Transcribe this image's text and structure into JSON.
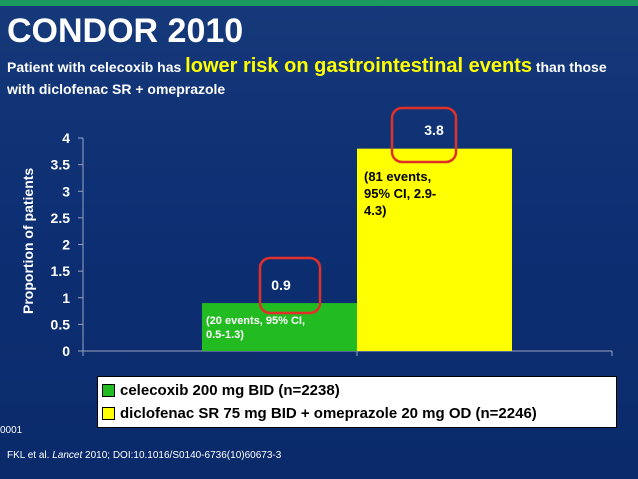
{
  "header": {
    "title": "CONDOR 2010",
    "subtitle_pre": "Patient with celecoxib has ",
    "subtitle_highlight": "lower risk on gastrointestinal events",
    "subtitle_post": " than those with diclofenac SR + omeprazole"
  },
  "colors": {
    "background": "#0d2f73",
    "celecoxib": "#22bb22",
    "diclofenac": "#ffff00",
    "highlight": "#ffff00",
    "callout": "#e0302a"
  },
  "chart_data": {
    "type": "bar",
    "title": "",
    "xlabel": "",
    "ylabel": "Proportion of patients",
    "ylim": [
      0,
      4
    ],
    "yticks": [
      0,
      0.5,
      1,
      1.5,
      2,
      2.5,
      3,
      3.5,
      4
    ],
    "grid": false,
    "legend_position": "bottom",
    "series": [
      {
        "name": "celecoxib 200 mg BID (n=2238)",
        "value": 0.9,
        "value_label": "0.9",
        "annotation": [
          "(20 events, 95% CI,",
          "0.5-1.3)"
        ]
      },
      {
        "name": "diclofenac SR 75 mg BID + omeprazole 20 mg OD (n=2246)",
        "value": 3.8,
        "value_label": "3.8",
        "annotation": [
          "(81 events,",
          "95% CI, 2.9-",
          "4.3)"
        ]
      }
    ]
  },
  "side_text": "0001",
  "footer": {
    "authors": "FKL et al. ",
    "journal": "Lancet",
    "citation": " 2010; DOI:10.1016/S0140-6736(10)60673-3"
  }
}
